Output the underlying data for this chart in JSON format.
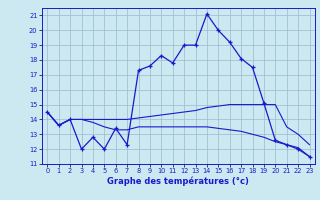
{
  "xlabel": "Graphe des températures (°c)",
  "bg_color": "#cce8f0",
  "line_color": "#1a1acc",
  "grid_color": "#99bbd0",
  "xlim": [
    -0.5,
    23.5
  ],
  "ylim": [
    11,
    21.5
  ],
  "yticks": [
    11,
    12,
    13,
    14,
    15,
    16,
    17,
    18,
    19,
    20,
    21
  ],
  "xticks": [
    0,
    1,
    2,
    3,
    4,
    5,
    6,
    7,
    8,
    9,
    10,
    11,
    12,
    13,
    14,
    15,
    16,
    17,
    18,
    19,
    20,
    21,
    22,
    23
  ],
  "curve1_x": [
    0,
    1,
    2,
    3,
    4,
    5,
    6,
    7,
    8,
    9,
    10,
    11,
    12,
    13,
    14,
    15,
    16,
    17,
    18,
    19,
    20,
    21,
    22,
    23
  ],
  "curve1_y": [
    14.5,
    13.6,
    14.0,
    12.0,
    12.8,
    12.0,
    13.4,
    12.3,
    17.3,
    17.6,
    18.3,
    17.8,
    19.0,
    19.0,
    21.1,
    20.0,
    19.2,
    18.1,
    17.5,
    15.1,
    12.6,
    12.3,
    12.0,
    11.5
  ],
  "curve2_x": [
    0,
    1,
    2,
    3,
    4,
    5,
    6,
    7,
    8,
    9,
    10,
    11,
    12,
    13,
    14,
    15,
    16,
    17,
    18,
    19,
    20,
    21,
    22,
    23
  ],
  "curve2_y": [
    14.5,
    13.6,
    14.0,
    14.0,
    14.0,
    14.0,
    14.0,
    14.0,
    14.1,
    14.2,
    14.3,
    14.4,
    14.5,
    14.6,
    14.8,
    14.9,
    15.0,
    15.0,
    15.0,
    15.0,
    15.0,
    13.5,
    13.0,
    12.3
  ],
  "curve3_x": [
    0,
    1,
    2,
    3,
    4,
    5,
    6,
    7,
    8,
    9,
    10,
    11,
    12,
    13,
    14,
    15,
    16,
    17,
    18,
    19,
    20,
    21,
    22,
    23
  ],
  "curve3_y": [
    14.5,
    13.6,
    14.0,
    14.0,
    13.8,
    13.5,
    13.3,
    13.3,
    13.5,
    13.5,
    13.5,
    13.5,
    13.5,
    13.5,
    13.5,
    13.4,
    13.3,
    13.2,
    13.0,
    12.8,
    12.5,
    12.3,
    12.1,
    11.5
  ],
  "xlabel_fontsize": 6.0,
  "tick_fontsize": 4.8
}
